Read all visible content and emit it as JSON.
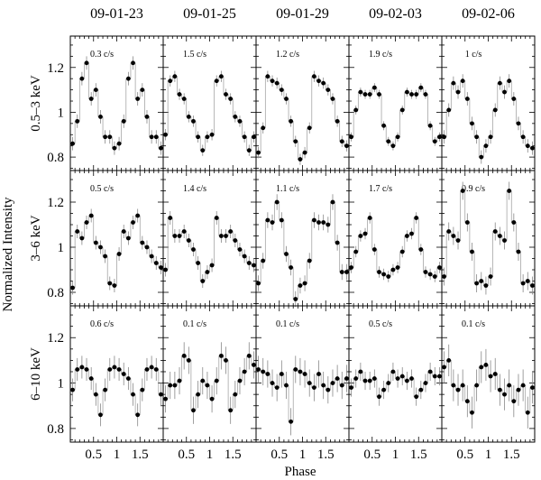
{
  "chart_data": {
    "type": "scatter",
    "description_layout": "grid",
    "columns": [
      "09-01-23",
      "09-01-25",
      "09-01-29",
      "09-02-03",
      "09-02-06"
    ],
    "rows": [
      "0.5–3 keV",
      "3–6 keV",
      "6–10 keV"
    ],
    "xlabel": "Phase",
    "ylabel": "Normalized Intensity",
    "xlim": [
      0,
      2
    ],
    "ylim": [
      0.74,
      1.34
    ],
    "x_ticks": [
      0.5,
      1,
      1.5
    ],
    "x_tick_labels": [
      "0.5",
      "1",
      "1.5"
    ],
    "y_ticks": [
      0.8,
      1.0,
      1.2
    ],
    "y_tick_labels": [
      "0.8",
      "1",
      "1.2"
    ],
    "grid": false,
    "phase": [
      0.05,
      0.15,
      0.25,
      0.35,
      0.45,
      0.55,
      0.65,
      0.75,
      0.85,
      0.95,
      1.05,
      1.15,
      1.25,
      1.35,
      1.45,
      1.55,
      1.65,
      1.75,
      1.85,
      1.95
    ],
    "panels": [
      [
        {
          "rate": "0.3 c/s",
          "y": [
            0.86,
            0.96,
            1.15,
            1.22,
            1.06,
            1.1,
            0.98,
            0.89,
            0.89,
            0.84,
            0.86,
            0.96,
            1.15,
            1.22,
            1.06,
            1.1,
            0.98,
            0.89,
            0.89,
            0.84
          ],
          "err": 0.03
        },
        {
          "rate": "1.5 c/s",
          "y": [
            0.9,
            1.14,
            1.16,
            1.08,
            1.06,
            0.98,
            0.96,
            0.89,
            0.83,
            0.89,
            0.9,
            1.14,
            1.16,
            1.08,
            1.06,
            0.98,
            0.96,
            0.89,
            0.83,
            0.89
          ],
          "err": 0.025
        },
        {
          "rate": "1.2 c/s",
          "y": [
            0.82,
            0.93,
            1.16,
            1.14,
            1.13,
            1.1,
            1.06,
            0.96,
            0.87,
            0.79,
            0.82,
            0.93,
            1.16,
            1.14,
            1.13,
            1.1,
            1.06,
            0.96,
            0.87,
            0.85
          ],
          "err": 0.025
        },
        {
          "rate": "1.9 c/s",
          "y": [
            0.89,
            1.01,
            1.09,
            1.08,
            1.08,
            1.11,
            1.08,
            0.94,
            0.87,
            0.85,
            0.89,
            1.01,
            1.09,
            1.08,
            1.08,
            1.11,
            1.08,
            0.94,
            0.87,
            0.89
          ],
          "err": 0.02
        },
        {
          "rate": "1 c/s",
          "y": [
            0.89,
            1.01,
            1.13,
            1.09,
            1.14,
            1.06,
            0.95,
            0.89,
            0.8,
            0.85,
            0.89,
            1.01,
            1.13,
            1.09,
            1.14,
            1.06,
            0.95,
            0.89,
            0.85,
            0.84
          ],
          "err": 0.03
        }
      ],
      [
        {
          "rate": "0.5 c/s",
          "y": [
            0.82,
            1.07,
            1.04,
            1.11,
            1.14,
            1.02,
            1.0,
            0.96,
            0.84,
            0.83,
            0.97,
            1.07,
            1.04,
            1.11,
            1.14,
            1.02,
            1.0,
            0.96,
            0.93,
            0.91
          ],
          "err": 0.03
        },
        {
          "rate": "1.4 c/s",
          "y": [
            0.9,
            1.13,
            1.05,
            1.05,
            1.07,
            1.03,
            0.99,
            0.93,
            0.85,
            0.89,
            0.92,
            1.13,
            1.05,
            1.05,
            1.07,
            1.03,
            0.99,
            0.96,
            0.93,
            0.92
          ],
          "err": 0.03
        },
        {
          "rate": "1.1 c/s",
          "y": [
            0.84,
            0.94,
            1.12,
            1.11,
            1.2,
            1.12,
            0.97,
            0.91,
            0.77,
            0.83,
            0.84,
            0.94,
            1.12,
            1.11,
            1.11,
            1.1,
            1.2,
            1.02,
            0.89,
            0.89
          ],
          "err": 0.035
        },
        {
          "rate": "1.7 c/s",
          "y": [
            0.91,
            0.98,
            1.05,
            1.06,
            1.13,
            0.99,
            0.89,
            0.88,
            0.87,
            0.9,
            0.91,
            0.98,
            1.05,
            1.06,
            1.13,
            0.99,
            0.89,
            0.88,
            0.87,
            0.91
          ],
          "err": 0.025
        },
        {
          "rate": "0.9 c/s",
          "y": [
            0.87,
            1.07,
            1.05,
            1.03,
            1.25,
            1.11,
            0.98,
            0.84,
            0.85,
            0.83,
            0.87,
            1.07,
            1.05,
            1.03,
            1.25,
            1.11,
            0.98,
            0.84,
            0.85,
            0.83
          ],
          "err": 0.04
        }
      ],
      [
        {
          "rate": "0.6 c/s",
          "y": [
            0.97,
            1.06,
            1.07,
            1.06,
            1.02,
            0.95,
            0.86,
            0.97,
            1.06,
            1.07,
            1.06,
            1.04,
            1.02,
            0.95,
            0.86,
            0.97,
            1.06,
            1.07,
            1.06,
            0.95
          ],
          "err": 0.05
        },
        {
          "rate": "0.1 c/s",
          "y": [
            0.93,
            0.99,
            0.99,
            1.01,
            1.12,
            1.1,
            0.88,
            0.95,
            1.01,
            0.99,
            0.93,
            1.01,
            1.12,
            1.1,
            0.88,
            0.95,
            1.01,
            1.05,
            1.12,
            1.08
          ],
          "err": 0.06
        },
        {
          "rate": "0.1 c/s",
          "y": [
            1.06,
            1.05,
            1.04,
            1.0,
            0.98,
            1.04,
            0.99,
            0.83,
            1.06,
            1.05,
            1.04,
            1.0,
            0.98,
            1.04,
            0.99,
            0.97,
            1.0,
            1.02,
            0.99,
            1.02
          ],
          "err": 0.06
        },
        {
          "rate": "0.5 c/s",
          "y": [
            0.98,
            1.02,
            1.05,
            1.01,
            1.01,
            1.02,
            0.94,
            0.97,
            1.0,
            1.05,
            1.02,
            1.03,
            1.01,
            1.02,
            0.94,
            0.97,
            1.0,
            1.05,
            1.03,
            1.03
          ],
          "err": 0.04
        },
        {
          "rate": "0.1 c/s",
          "y": [
            1.07,
            1.1,
            0.99,
            0.97,
            0.99,
            0.92,
            0.87,
            0.99,
            1.07,
            1.08,
            1.03,
            1.04,
            0.97,
            0.95,
            0.99,
            0.92,
            0.97,
            0.99,
            0.87,
            0.98
          ],
          "err": 0.07
        }
      ]
    ]
  }
}
